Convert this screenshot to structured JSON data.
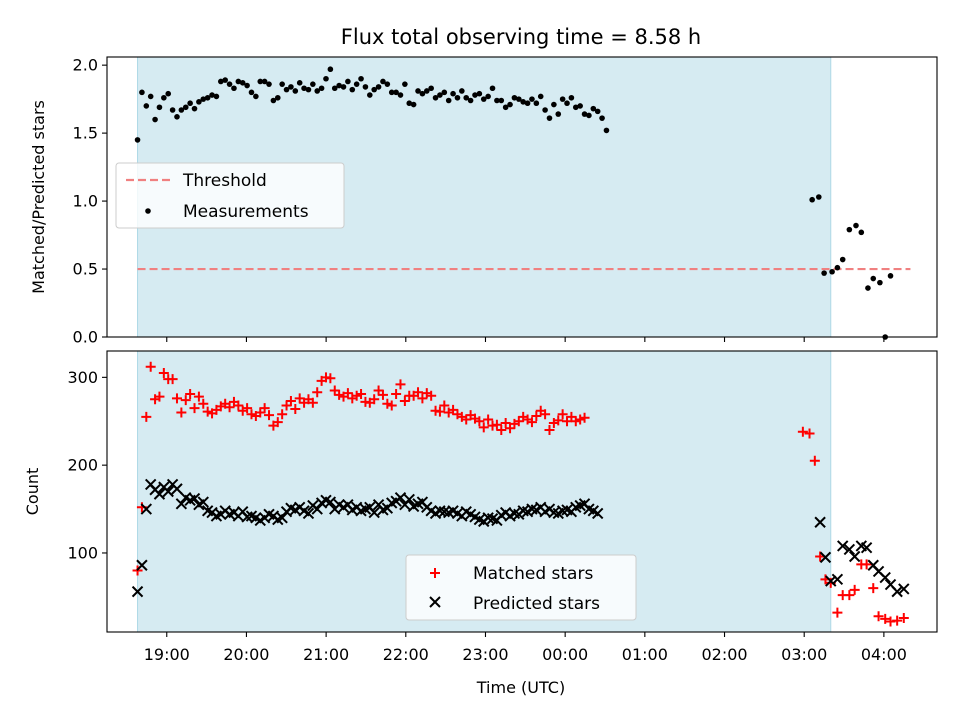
{
  "title": "Flux total observing time = 8.58 h",
  "xlabel": "Time (UTC)",
  "colors": {
    "shade": "#add8e6",
    "threshold": "#f08080",
    "measurements": "#000000",
    "matched": "#ff0000",
    "predicted": "#000000"
  },
  "chart_data": [
    {
      "type": "scatter",
      "panel": "top",
      "ylabel": "Matched/Predicted stars",
      "ylim": [
        0,
        2.06
      ],
      "yticks": [
        0.0,
        0.5,
        1.0,
        1.5,
        2.0
      ],
      "ytick_labels": [
        "0.0",
        "0.5",
        "1.0",
        "1.5",
        "2.0"
      ],
      "xlim": [
        "18:15",
        "04:40"
      ],
      "xtick_labels": [
        "19:00",
        "20:00",
        "21:00",
        "22:00",
        "23:00",
        "00:00",
        "01:00",
        "02:00",
        "03:00",
        "04:00"
      ],
      "shaded_span": [
        "18:38",
        "03:20"
      ],
      "legend_location": "center-left",
      "threshold": {
        "name": "Threshold",
        "value": 0.5,
        "x_range": [
          "18:38",
          "04:20"
        ]
      },
      "series": [
        {
          "name": "Measurements",
          "x_start": "18:38",
          "x_step_min": 3.3,
          "y": [
            1.45,
            1.8,
            1.7,
            1.77,
            1.6,
            1.69,
            1.76,
            1.79,
            1.67,
            1.62,
            1.67,
            1.69,
            1.72,
            1.68,
            1.73,
            1.75,
            1.76,
            1.78,
            1.77,
            1.88,
            1.89,
            1.86,
            1.83,
            1.88,
            1.87,
            1.85,
            1.8,
            1.77,
            1.88,
            1.88,
            1.86,
            1.74,
            1.76,
            1.86,
            1.82,
            1.84,
            1.81,
            1.87,
            1.83,
            1.82,
            1.86,
            1.81,
            1.83,
            1.9,
            1.97,
            1.83,
            1.85,
            1.84,
            1.88,
            1.82,
            1.86,
            1.9,
            1.84,
            1.78,
            1.82,
            1.84,
            1.88,
            1.86,
            1.8,
            1.8,
            1.78,
            1.86,
            1.72,
            1.71,
            1.81,
            1.79,
            1.81,
            1.83,
            1.76,
            1.78,
            1.8,
            1.74,
            1.79,
            1.76,
            1.81,
            1.76,
            1.74,
            1.78,
            1.79,
            1.75,
            1.77,
            1.83,
            1.74,
            1.74,
            1.69,
            1.71,
            1.76,
            1.75,
            1.73,
            1.72,
            1.75,
            1.72,
            1.77,
            1.67,
            1.61,
            1.71,
            1.64,
            1.75,
            1.72,
            1.76,
            1.69,
            1.7,
            1.64,
            1.63,
            1.68,
            1.66,
            1.61,
            1.52,
            1.01,
            1.03,
            0.47,
            0.48,
            0.51,
            0.57,
            0.79,
            0.82,
            0.77,
            0.36,
            0.43,
            0.4,
            0.0,
            0.45
          ],
          "x_override": {
            "108": "03:06",
            "109": "03:11",
            "110": "03:15",
            "111": "03:21",
            "112": "03:25",
            "113": "03:29",
            "114": "03:34",
            "115": "03:39",
            "116": "03:43",
            "117": "03:48",
            "118": "03:52",
            "119": "03:57",
            "120": "04:01",
            "121": "04:05"
          }
        }
      ]
    },
    {
      "type": "scatter",
      "panel": "bottom",
      "ylabel": "Count",
      "ylim": [
        10,
        330
      ],
      "yticks": [
        100,
        200,
        300
      ],
      "ytick_labels": [
        "100",
        "200",
        "300"
      ],
      "xlim": [
        "18:15",
        "04:40"
      ],
      "xtick_labels": [
        "19:00",
        "20:00",
        "21:00",
        "22:00",
        "23:00",
        "00:00",
        "01:00",
        "02:00",
        "03:00",
        "04:00"
      ],
      "shaded_span": [
        "18:38",
        "03:20"
      ],
      "legend_location": "lower-center",
      "series": [
        {
          "name": "Matched stars",
          "marker": "plus",
          "x_start": "18:38",
          "x_step_min": 3.3,
          "y": [
            80,
            152,
            255,
            312,
            275,
            278,
            305,
            298,
            298,
            276,
            260,
            274,
            281,
            265,
            278,
            270,
            261,
            259,
            263,
            267,
            270,
            266,
            272,
            268,
            262,
            265,
            258,
            256,
            260,
            265,
            257,
            245,
            249,
            258,
            268,
            273,
            264,
            276,
            271,
            275,
            271,
            283,
            296,
            300,
            299,
            285,
            280,
            278,
            282,
            276,
            279,
            281,
            272,
            271,
            275,
            285,
            280,
            270,
            268,
            281,
            292,
            273,
            279,
            279,
            283,
            276,
            282,
            279,
            262,
            261,
            268,
            260,
            263,
            258,
            255,
            252,
            257,
            253,
            250,
            243,
            252,
            245,
            246,
            240,
            248,
            242,
            247,
            250,
            255,
            252,
            249,
            256,
            262,
            258,
            240,
            248,
            251,
            258,
            250,
            255,
            250,
            252,
            254,
            238,
            236,
            205,
            96,
            70,
            66,
            32,
            52,
            52,
            58,
            87,
            87,
            60,
            28,
            25,
            22,
            23,
            26
          ],
          "x_override": {
            "103": "02:59",
            "104": "03:04",
            "105": "03:08",
            "106": "03:12",
            "107": "03:16",
            "108": "03:20",
            "109": "03:25",
            "110": "03:29",
            "111": "03:34",
            "112": "03:38",
            "113": "03:43",
            "114": "03:47",
            "115": "03:52",
            "116": "03:56",
            "117": "04:01",
            "118": "04:05",
            "119": "04:10",
            "120": "04:15"
          }
        },
        {
          "name": "Predicted stars",
          "marker": "x",
          "x_start": "18:38",
          "x_step_min": 3.3,
          "y": [
            56,
            86,
            150,
            178,
            172,
            167,
            175,
            170,
            178,
            173,
            156,
            163,
            160,
            162,
            155,
            158,
            148,
            146,
            142,
            144,
            148,
            144,
            146,
            142,
            147,
            141,
            142,
            140,
            137,
            140,
            144,
            142,
            138,
            140,
            147,
            151,
            149,
            152,
            148,
            145,
            154,
            150,
            157,
            160,
            158,
            150,
            155,
            152,
            155,
            149,
            152,
            148,
            150,
            152,
            146,
            155,
            149,
            151,
            157,
            159,
            163,
            155,
            161,
            153,
            156,
            158,
            152,
            148,
            145,
            148,
            147,
            146,
            148,
            145,
            142,
            147,
            144,
            141,
            138,
            136,
            140,
            139,
            137,
            143,
            146,
            142,
            145,
            144,
            148,
            147,
            150,
            149,
            152,
            147,
            150,
            146,
            145,
            148,
            149,
            147,
            152,
            154,
            156,
            150,
            148,
            145,
            135,
            95,
            68,
            70,
            108,
            104,
            96,
            108,
            106,
            86,
            79,
            72,
            64,
            56,
            59
          ],
          "x_override": {
            "106": "03:12",
            "107": "03:16",
            "108": "03:20",
            "109": "03:25",
            "110": "03:29",
            "111": "03:34",
            "112": "03:38",
            "113": "03:43",
            "114": "03:47",
            "115": "03:52",
            "116": "03:56",
            "117": "04:01",
            "118": "04:05",
            "119": "04:10",
            "120": "04:15"
          }
        }
      ]
    }
  ]
}
